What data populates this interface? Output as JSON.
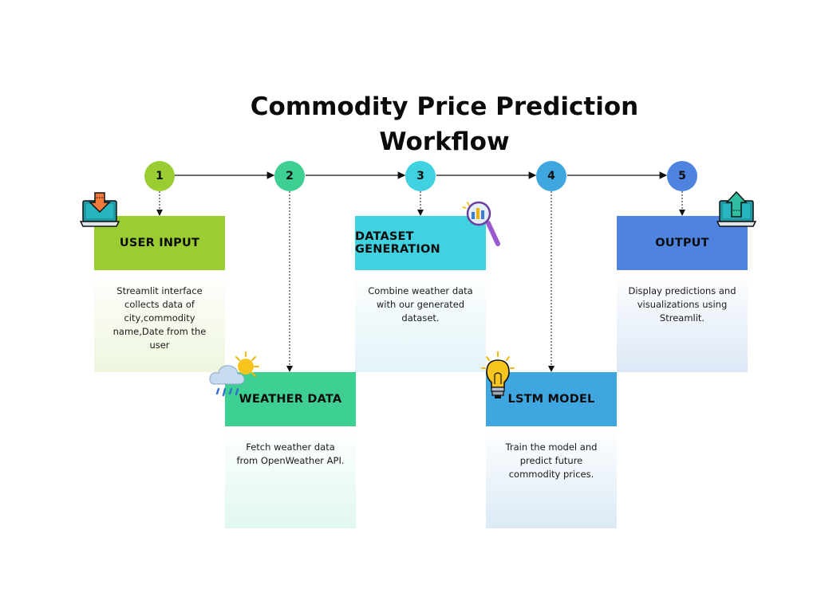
{
  "title": {
    "line1": "Commodity Price Prediction",
    "line2": "Workflow"
  },
  "steps": [
    {
      "number": "1",
      "heading": "USER INPUT",
      "description": "Streamlit interface collects data of city,commodity name,Date from the user",
      "color": "#9acd32",
      "icon": "laptop-download-icon"
    },
    {
      "number": "2",
      "heading": "WEATHER DATA",
      "description": "Fetch weather data from OpenWeather API.",
      "color": "#3ecf93",
      "icon": "weather-sun-rain-icon"
    },
    {
      "number": "3",
      "heading": "DATASET GENERATION",
      "description": "Combine weather data with our generated dataset.",
      "color": "#40d2e0",
      "icon": "magnifier-chart-icon"
    },
    {
      "number": "4",
      "heading": "LSTM MODEL",
      "description": "Train the model and predict future commodity prices.",
      "color": "#3fa6e0",
      "icon": "lightbulb-icon"
    },
    {
      "number": "5",
      "heading": "OUTPUT",
      "description": "Display predictions and visualizations using Streamlit.",
      "color": "#4f83e0",
      "icon": "laptop-upload-icon"
    }
  ],
  "colors": {
    "step1_body_gradient_end": "#eef6dd",
    "step2_body_gradient_end": "#e0f8ee",
    "step3_body_gradient_end": "#e2f4f8",
    "step4_body_gradient_end": "#dbeaf6",
    "step5_body_gradient_end": "#dce8f6"
  }
}
